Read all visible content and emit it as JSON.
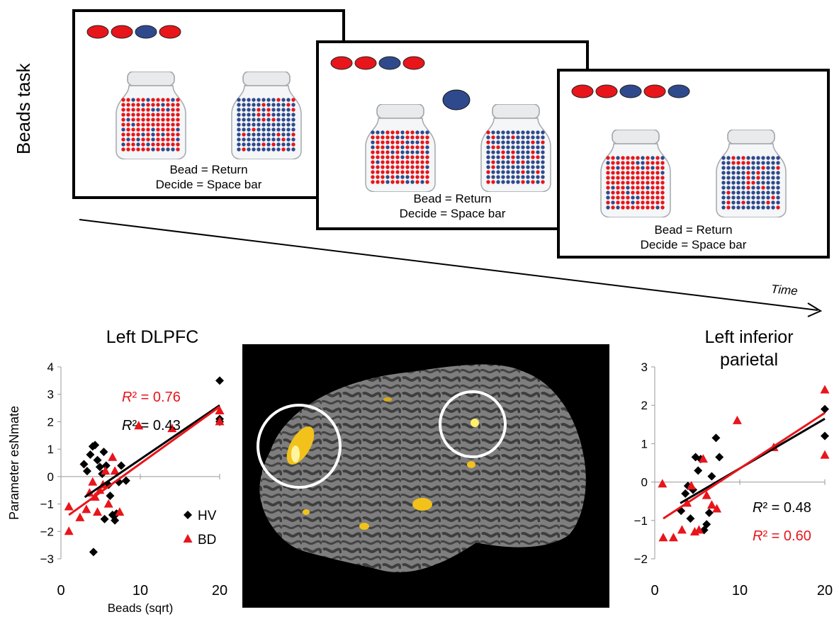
{
  "task": {
    "side_label": "Beads task",
    "time_label": "Time",
    "screens": [
      {
        "beads_shown": [
          "red",
          "red",
          "blue",
          "red"
        ],
        "drawn_bead": null,
        "caption_line1": "Bead = Return",
        "caption_line2": "Decide = Space bar"
      },
      {
        "beads_shown": [
          "red",
          "red",
          "blue",
          "red"
        ],
        "drawn_bead": "blue",
        "caption_line1": "Bead = Return",
        "caption_line2": "Decide = Space bar"
      },
      {
        "beads_shown": [
          "red",
          "red",
          "blue",
          "red",
          "blue"
        ],
        "drawn_bead": null,
        "caption_line1": "Bead = Return",
        "caption_line2": "Decide = Space bar"
      }
    ]
  },
  "colors": {
    "red": "#e8151b",
    "blue": "#2f4a8c",
    "hv": "#000000",
    "bd": "#e8151b",
    "blob": "#f2c21b"
  },
  "chart_data": [
    {
      "type": "scatter",
      "title": "Left DLPFC",
      "xlabel": "Beads (sqrt)",
      "ylabel": "Parameter esNmate",
      "xlim": [
        0,
        20
      ],
      "ylim": [
        -3,
        4
      ],
      "xticks": [
        "0",
        "10",
        "20"
      ],
      "yticks": [
        "4",
        "3",
        "2",
        "1",
        "0",
        "−1",
        "−2",
        "−3"
      ],
      "series": [
        {
          "name": "HV",
          "marker": "diamond",
          "r2_prefix": "R",
          "r2_text": "² = 0.43",
          "fit": [
            [
              3,
              -0.75
            ],
            [
              20,
              2.6
            ]
          ],
          "points": [
            [
              2.9,
              0.45
            ],
            [
              3.3,
              0.2
            ],
            [
              3.7,
              0.8
            ],
            [
              4.0,
              1.1
            ],
            [
              4.3,
              1.15
            ],
            [
              4.6,
              0.6
            ],
            [
              4.9,
              0.35
            ],
            [
              5.2,
              0.1
            ],
            [
              5.4,
              0.9
            ],
            [
              5.7,
              0.4
            ],
            [
              6.0,
              -0.3
            ],
            [
              6.2,
              -0.7
            ],
            [
              6.5,
              -1.4
            ],
            [
              6.8,
              -1.6
            ],
            [
              7.0,
              -1.35
            ],
            [
              7.3,
              -0.2
            ],
            [
              7.6,
              0.4
            ],
            [
              8.2,
              -0.15
            ],
            [
              5.5,
              -1.55
            ],
            [
              4.1,
              -2.75
            ],
            [
              20,
              3.5
            ],
            [
              20,
              2.1
            ],
            [
              20,
              2.0
            ]
          ]
        },
        {
          "name": "BD",
          "marker": "triangle",
          "r2_prefix": "R",
          "r2_text": "² = 0.76",
          "fit": [
            [
              1,
              -1.4
            ],
            [
              20,
              2.55
            ]
          ],
          "points": [
            [
              1.0,
              -2.0
            ],
            [
              1.0,
              -1.1
            ],
            [
              2.4,
              -1.5
            ],
            [
              3.2,
              -1.2
            ],
            [
              3.6,
              -0.6
            ],
            [
              4.0,
              -0.2
            ],
            [
              4.3,
              -0.75
            ],
            [
              4.6,
              -1.3
            ],
            [
              4.9,
              -0.5
            ],
            [
              5.3,
              -0.3
            ],
            [
              5.6,
              0.2
            ],
            [
              6.0,
              -1.0
            ],
            [
              6.5,
              0.7
            ],
            [
              6.8,
              0.2
            ],
            [
              7.4,
              -1.3
            ],
            [
              9.8,
              1.85
            ],
            [
              14.0,
              1.75
            ],
            [
              20,
              2.4
            ],
            [
              20,
              2.0
            ]
          ]
        }
      ]
    },
    {
      "type": "scatter",
      "title": "Left inferior parietal",
      "title_line1": "Left inferior",
      "title_line2": "parietal",
      "xlim": [
        0,
        20
      ],
      "ylim": [
        -2,
        3
      ],
      "xticks": [
        "0",
        "10",
        "20"
      ],
      "yticks": [
        "3",
        "2",
        "1",
        "0",
        "−1",
        "−2"
      ],
      "series": [
        {
          "name": "HV",
          "marker": "diamond",
          "r2_prefix": "R",
          "r2_text": "² = 0.48",
          "fit": [
            [
              3,
              -0.55
            ],
            [
              20,
              1.65
            ]
          ],
          "points": [
            [
              3.1,
              -0.75
            ],
            [
              3.6,
              -0.3
            ],
            [
              3.9,
              -0.1
            ],
            [
              4.2,
              -0.95
            ],
            [
              4.5,
              -0.2
            ],
            [
              4.8,
              0.65
            ],
            [
              5.1,
              0.3
            ],
            [
              5.4,
              0.6
            ],
            [
              5.8,
              -1.25
            ],
            [
              6.1,
              -1.1
            ],
            [
              6.4,
              -0.8
            ],
            [
              6.7,
              0.15
            ],
            [
              7.2,
              1.15
            ],
            [
              7.6,
              0.65
            ],
            [
              20,
              1.9
            ],
            [
              20,
              1.2
            ]
          ]
        },
        {
          "name": "BD",
          "marker": "triangle",
          "r2_prefix": "R",
          "r2_text": "² = 0.60",
          "fit": [
            [
              1,
              -0.95
            ],
            [
              20,
              1.8
            ]
          ],
          "points": [
            [
              0.9,
              -0.05
            ],
            [
              1.0,
              -1.45
            ],
            [
              2.2,
              -1.45
            ],
            [
              3.2,
              -1.25
            ],
            [
              3.8,
              -0.55
            ],
            [
              4.3,
              -0.1
            ],
            [
              4.7,
              -1.3
            ],
            [
              5.2,
              -1.25
            ],
            [
              5.7,
              0.6
            ],
            [
              6.1,
              -0.35
            ],
            [
              6.7,
              -0.6
            ],
            [
              7.3,
              -0.7
            ],
            [
              9.7,
              1.6
            ],
            [
              14.0,
              0.9
            ],
            [
              20,
              2.4
            ],
            [
              20,
              0.7
            ]
          ]
        }
      ]
    }
  ]
}
